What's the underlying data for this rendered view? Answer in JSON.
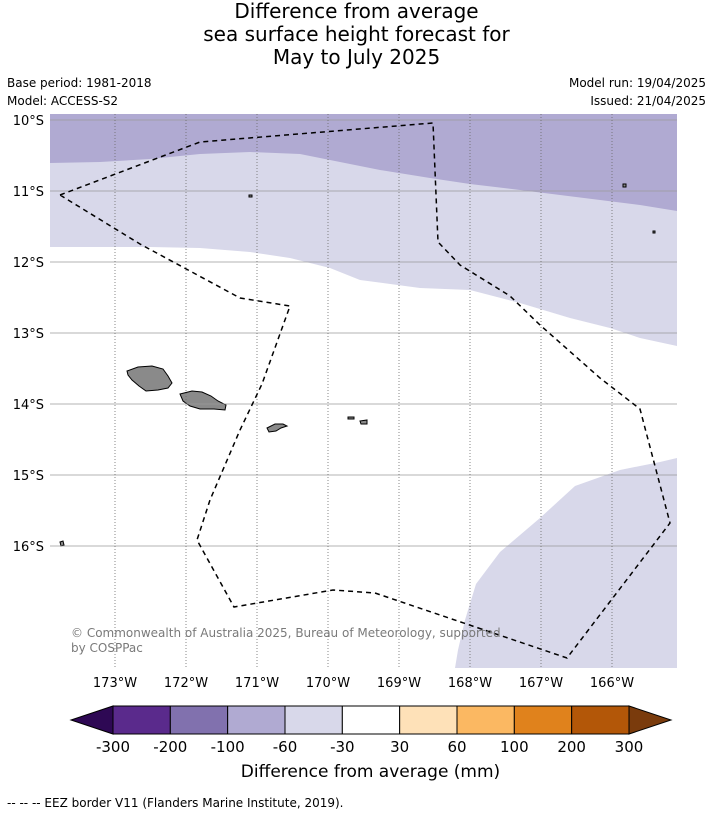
{
  "title": {
    "line1": "Difference from average",
    "line2": "sea surface height forecast for",
    "line3": "May to July 2025"
  },
  "meta": {
    "base_period": "Base period: 1981-2018",
    "model": "Model: ACCESS-S2",
    "model_run": "Model run: 19/04/2025",
    "issued": "Issued: 21/04/2025"
  },
  "map": {
    "lat_labels": [
      "10°S",
      "11°S",
      "12°S",
      "13°S",
      "14°S",
      "15°S",
      "16°S"
    ],
    "lon_labels": [
      "173°W",
      "172°W",
      "171°W",
      "170°W",
      "169°W",
      "168°W",
      "167°W",
      "166°W"
    ],
    "colors": {
      "band_100_60": "#b0aad2",
      "band_60_30": "#d8d8ea",
      "land": "#8a8a8a"
    },
    "copyright": "© Commonwealth of Australia 2025, Bureau of Meteorology, supported by COSPPac"
  },
  "colorbar": {
    "tick_labels": [
      "-300",
      "-200",
      "-100",
      "-60",
      "-30",
      "30",
      "60",
      "100",
      "200",
      "300"
    ],
    "bins": [
      "#5a2a8c",
      "#8171ae",
      "#b0aad2",
      "#d8d8ea",
      "#ffffff",
      "#fee1b8",
      "#fbb862",
      "#e0821c",
      "#b35708"
    ],
    "under_color": "#2e0854",
    "over_color": "#7a3b0c",
    "label": "Difference from average (mm)"
  },
  "footnote": "--  --  -- EEZ border V11 (Flanders Marine Institute, 2019)."
}
